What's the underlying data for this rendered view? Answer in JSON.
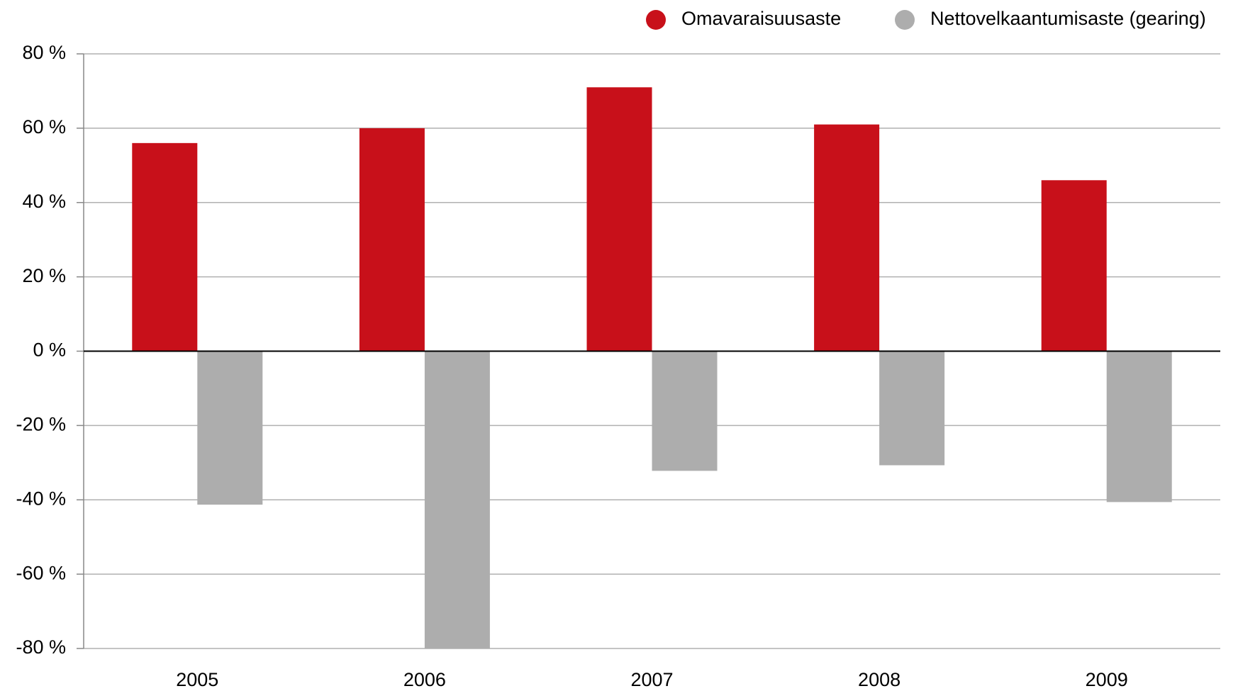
{
  "chart_data": {
    "type": "bar",
    "categories": [
      "2005",
      "2006",
      "2007",
      "2008",
      "2009"
    ],
    "series": [
      {
        "name": "Omavaraisuusaste",
        "color": "#c8101a",
        "values": [
          56,
          60,
          71,
          61,
          46
        ]
      },
      {
        "name": "Nettovelkaantumisaste (gearing)",
        "color": "#adadad",
        "values": [
          -41.3,
          -80,
          -32.2,
          -30.7,
          -40.6
        ]
      }
    ],
    "ylim": [
      -80,
      80
    ],
    "yticks": [
      {
        "value": -80,
        "label": "-80 %"
      },
      {
        "value": -60,
        "label": "-60 %"
      },
      {
        "value": -40,
        "label": "-40 %"
      },
      {
        "value": -20,
        "label": "-20 %"
      },
      {
        "value": 0,
        "label": "0 %"
      },
      {
        "value": 20,
        "label": "20 %"
      },
      {
        "value": 40,
        "label": "40 %"
      },
      {
        "value": 60,
        "label": "60 %"
      },
      {
        "value": 80,
        "label": "80 %"
      }
    ],
    "grid": true,
    "legend": "top-right"
  }
}
